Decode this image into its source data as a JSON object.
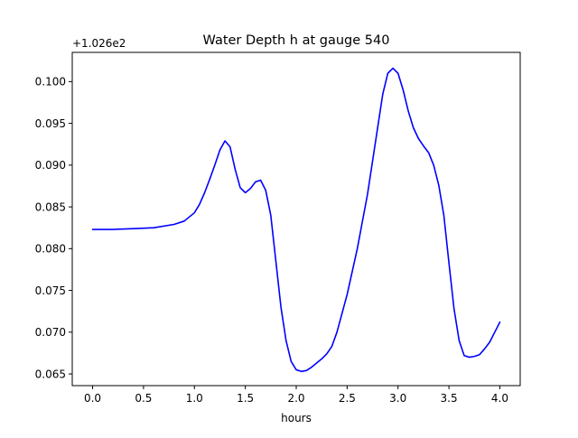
{
  "chart_data": {
    "type": "line",
    "title": "Water Depth h at gauge 540",
    "xlabel": "hours",
    "ylabel": "",
    "offset_label": "+1.026e2",
    "xlim": [
      -0.2,
      4.2
    ],
    "ylim": [
      0.0636,
      0.1035
    ],
    "x_ticks": [
      0.0,
      0.5,
      1.0,
      1.5,
      2.0,
      2.5,
      3.0,
      3.5,
      4.0
    ],
    "x_tick_labels": [
      "0.0",
      "0.5",
      "1.0",
      "1.5",
      "2.0",
      "2.5",
      "3.0",
      "3.5",
      "4.0"
    ],
    "y_ticks": [
      0.065,
      0.07,
      0.075,
      0.08,
      0.085,
      0.09,
      0.095,
      0.1
    ],
    "y_tick_labels": [
      "0.065",
      "0.070",
      "0.075",
      "0.080",
      "0.085",
      "0.090",
      "0.095",
      "0.100"
    ],
    "grid": false,
    "series": [
      {
        "color": "#0000ff",
        "x": [
          0.0,
          0.2,
          0.4,
          0.6,
          0.8,
          0.9,
          1.0,
          1.05,
          1.1,
          1.15,
          1.2,
          1.25,
          1.3,
          1.35,
          1.4,
          1.45,
          1.5,
          1.55,
          1.6,
          1.65,
          1.7,
          1.75,
          1.8,
          1.85,
          1.9,
          1.95,
          2.0,
          2.05,
          2.1,
          2.15,
          2.2,
          2.25,
          2.3,
          2.35,
          2.4,
          2.5,
          2.6,
          2.7,
          2.8,
          2.85,
          2.9,
          2.95,
          3.0,
          3.05,
          3.1,
          3.15,
          3.2,
          3.25,
          3.3,
          3.35,
          3.4,
          3.45,
          3.5,
          3.55,
          3.6,
          3.65,
          3.7,
          3.75,
          3.8,
          3.85,
          3.9,
          3.95,
          4.0
        ],
        "y": [
          0.0823,
          0.0823,
          0.0824,
          0.0825,
          0.0829,
          0.0833,
          0.0843,
          0.0853,
          0.0867,
          0.0883,
          0.09,
          0.0918,
          0.0929,
          0.0922,
          0.0895,
          0.0873,
          0.0867,
          0.0872,
          0.088,
          0.0882,
          0.087,
          0.084,
          0.0785,
          0.073,
          0.069,
          0.0665,
          0.0655,
          0.0653,
          0.0654,
          0.0658,
          0.0663,
          0.0668,
          0.0674,
          0.0683,
          0.07,
          0.0745,
          0.08,
          0.0865,
          0.0945,
          0.0985,
          0.101,
          0.1016,
          0.101,
          0.099,
          0.0965,
          0.0945,
          0.0932,
          0.0923,
          0.0915,
          0.09,
          0.0876,
          0.084,
          0.0783,
          0.0728,
          0.069,
          0.0672,
          0.067,
          0.0671,
          0.0673,
          0.068,
          0.0688,
          0.07,
          0.0712
        ]
      }
    ]
  }
}
